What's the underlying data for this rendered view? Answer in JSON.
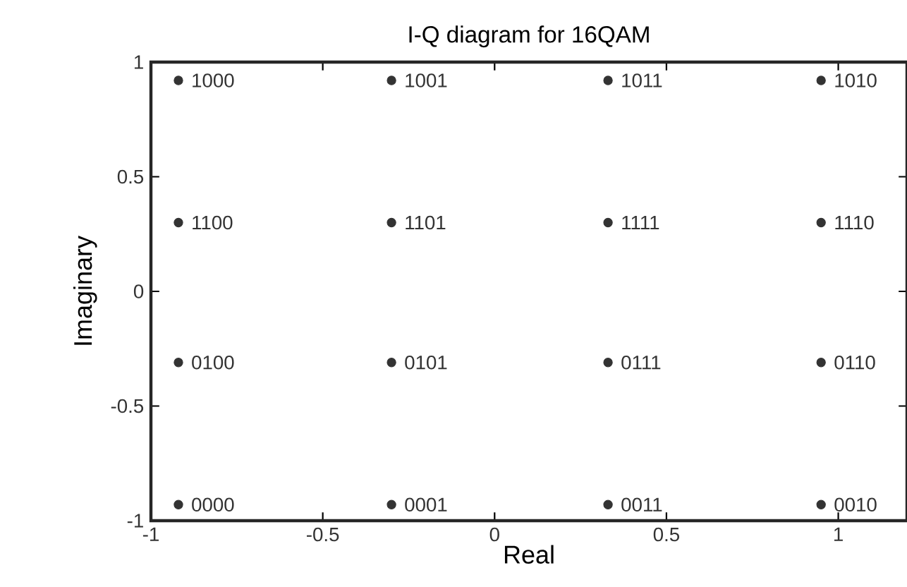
{
  "chart_data": {
    "type": "scatter",
    "title": "I-Q diagram for 16QAM",
    "xlabel": "Real",
    "ylabel": "Imaginary",
    "xlim": [
      -1,
      1.2
    ],
    "ylim": [
      -1,
      1
    ],
    "xticks": [
      -1,
      -0.5,
      0,
      0.5,
      1
    ],
    "yticks": [
      -1,
      -0.5,
      0,
      0.5,
      1
    ],
    "grid": false,
    "series": [
      {
        "color": "#333333",
        "x": [
          -0.92,
          -0.3,
          0.33,
          0.95,
          -0.92,
          -0.3,
          0.33,
          0.95,
          -0.92,
          -0.3,
          0.33,
          0.95,
          -0.92,
          -0.3,
          0.33,
          0.95
        ],
        "values": [
          0.92,
          0.92,
          0.92,
          0.92,
          0.3,
          0.3,
          0.3,
          0.3,
          -0.31,
          -0.31,
          -0.31,
          -0.31,
          -0.93,
          -0.93,
          -0.93,
          -0.93
        ]
      }
    ],
    "annotations": [
      {
        "text": "1000",
        "x": -0.92,
        "y": 0.92
      },
      {
        "text": "1001",
        "x": -0.3,
        "y": 0.92
      },
      {
        "text": "1011",
        "x": 0.33,
        "y": 0.92
      },
      {
        "text": "1010",
        "x": 0.95,
        "y": 0.92
      },
      {
        "text": "1100",
        "x": -0.92,
        "y": 0.3
      },
      {
        "text": "1101",
        "x": -0.3,
        "y": 0.3
      },
      {
        "text": "1111",
        "x": 0.33,
        "y": 0.3
      },
      {
        "text": "1110",
        "x": 0.95,
        "y": 0.3
      },
      {
        "text": "0100",
        "x": -0.92,
        "y": -0.31
      },
      {
        "text": "0101",
        "x": -0.3,
        "y": -0.31
      },
      {
        "text": "0111",
        "x": 0.33,
        "y": -0.31
      },
      {
        "text": "0110",
        "x": 0.95,
        "y": -0.31
      },
      {
        "text": "0000",
        "x": -0.92,
        "y": -0.93
      },
      {
        "text": "0001",
        "x": -0.3,
        "y": -0.93
      },
      {
        "text": "0011",
        "x": 0.33,
        "y": -0.93
      },
      {
        "text": "0010",
        "x": 0.95,
        "y": -0.93
      }
    ]
  }
}
